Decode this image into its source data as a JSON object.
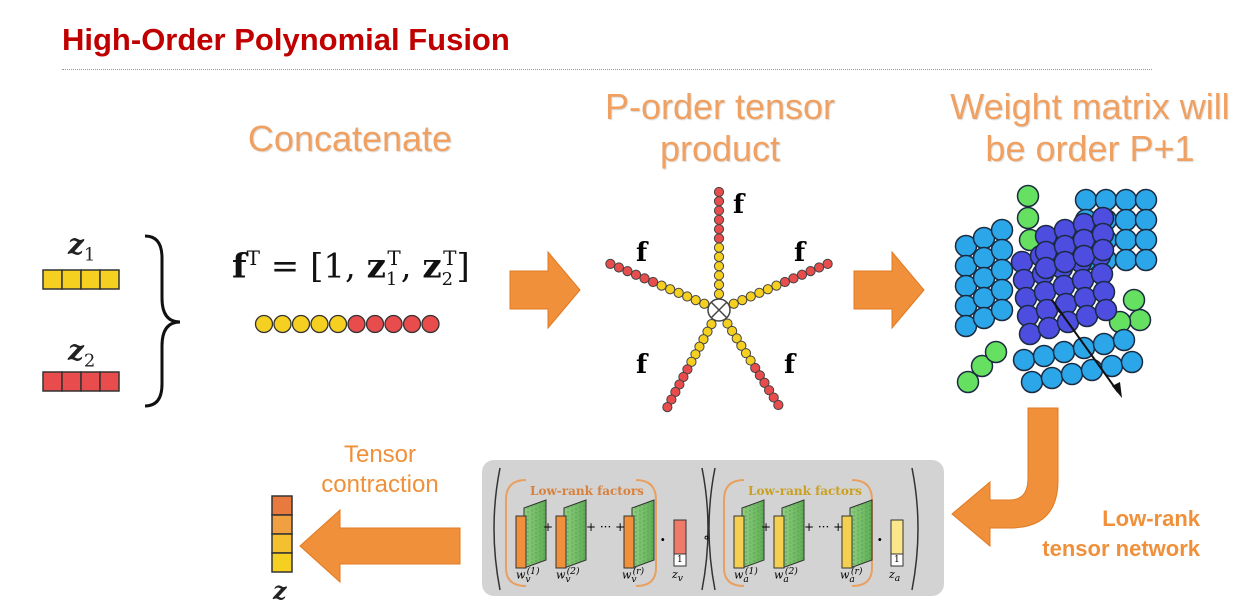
{
  "slide": {
    "title": "High-Order Polynomial Fusion"
  },
  "concat": {
    "heading": "Concatenate",
    "z1_label": "z",
    "z1_sub": "1",
    "z2_label": "z",
    "z2_sub": "2",
    "formula_lhs": "f",
    "formula_sup": "T",
    "formula_rhs_open": " = [1, ",
    "formula_z": "z",
    "formula_z1_sub": "1",
    "formula_z2_sub": "2",
    "formula_T": "T",
    "formula_close": "]",
    "vector_yellow_count": 5,
    "vector_red_count": 5
  },
  "tensor_product": {
    "heading_line1": "P-order tensor",
    "heading_line2": "product",
    "arm_label": "f",
    "center_symbol": "⊗"
  },
  "weight": {
    "heading_line1": "Weight matrix will",
    "heading_line2": "be order P+1"
  },
  "network": {
    "label_line1": "Low-rank",
    "label_line2": "tensor network",
    "factors_label": "Low-rank factors",
    "w_v": "w",
    "w_v_sub": "v",
    "w_a": "w",
    "w_a_sub": "a",
    "sup1": "(1)",
    "sup2": "(2)",
    "supr": "(r)",
    "plus": "+",
    "dots_plus": "+ ··· +",
    "dot_op": "·",
    "circ_op": "∘",
    "z_v": "z",
    "z_v_sub": "v",
    "z_a": "z",
    "z_a_sub": "a",
    "one": "1"
  },
  "contraction": {
    "label_line1": "Tensor",
    "label_line2": "contraction",
    "output_label": "z"
  },
  "colors": {
    "title_red": "#c00000",
    "orange": "#f0903a",
    "yellow": "#f5d020",
    "red": "#e84c4c",
    "cyan": "#2ba6e8",
    "blue": "#4d4de0",
    "green": "#66e060"
  }
}
